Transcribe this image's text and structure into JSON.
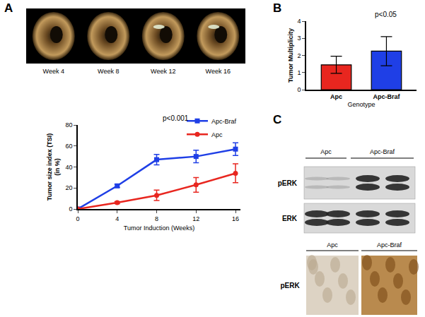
{
  "chart_data": [
    {
      "type": "line",
      "x_label": "Tumor Induction (Weeks)",
      "y_label": "Tumor size index (TSI)\n(in %)",
      "annotation": "p<0.001",
      "x": [
        0,
        4,
        8,
        12,
        16
      ],
      "xlim": [
        0,
        16.5
      ],
      "xticks": [
        0,
        4,
        8,
        12,
        16
      ],
      "ylim": [
        0,
        80
      ],
      "yticks": [
        0,
        20,
        40,
        60,
        80
      ],
      "legend": "upper right",
      "series": [
        {
          "name": "Apc-Braf",
          "color": "#1f3fe6",
          "marker": "square",
          "values": [
            0,
            22,
            47,
            50,
            57
          ],
          "error": [
            0,
            1.5,
            5,
            6,
            6
          ]
        },
        {
          "name": "Apc",
          "color": "#e8261f",
          "marker": "circle",
          "values": [
            0,
            6,
            13,
            23,
            34
          ],
          "error": [
            0,
            1,
            5,
            7,
            9
          ]
        }
      ]
    },
    {
      "type": "bar",
      "x_label": "Genotype",
      "y_label": "Tumor Multiplicity",
      "annotation": "p<0.05",
      "categories": [
        "Apc",
        "Apc-Braf"
      ],
      "values": [
        1.45,
        2.25
      ],
      "error": [
        0.5,
        0.85
      ],
      "colors": [
        "#e8261f",
        "#1f3fe6"
      ],
      "ylim": [
        0,
        4
      ],
      "yticks": [
        0,
        1,
        2,
        3,
        4
      ]
    }
  ],
  "figure": {
    "panel_labels": [
      "A",
      "B",
      "C"
    ],
    "endoscopy_weeks": [
      "Week 4",
      "Week 8",
      "Week 12",
      "Week 16"
    ],
    "western_blot": {
      "groups": [
        "Apc",
        "Apc-Braf"
      ],
      "rows": [
        "pERK",
        "ERK"
      ]
    },
    "ihc": {
      "groups": [
        "Apc",
        "Apc-Braf"
      ],
      "stain": "pERK"
    }
  }
}
